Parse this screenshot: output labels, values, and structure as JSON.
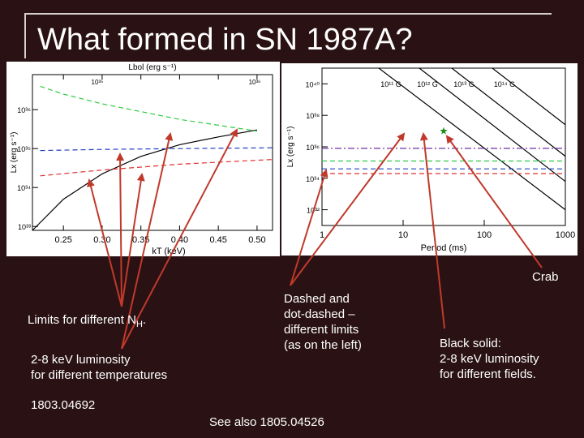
{
  "slide": {
    "title": "What formed in SN 1987A?",
    "labels": {
      "crab": "Crab",
      "limits_nh_prefix": "Limits for different N",
      "limits_nh_sub": "H",
      "limits_nh_suffix": ".",
      "luminosity_temps_1": "2-8 keV luminosity",
      "luminosity_temps_2": "for different temperatures",
      "arxiv_ref": "1803.04692",
      "dashed_1": "Dashed and",
      "dashed_2": "dot-dashed –",
      "dashed_3": "different limits",
      "dashed_4": "(as on the left)",
      "black_1": "Black solid:",
      "black_2": "2-8 keV luminosity",
      "black_3": "for different fields.",
      "see_also": "See also 1805.04526"
    },
    "arrow_color": "#c0392b"
  },
  "chart_data": [
    {
      "type": "line",
      "xlabel": "kT (keV)",
      "ylabel": "Lx (erg s⁻¹)",
      "top_label": "Lbol (erg s⁻¹)",
      "xlim": [
        0.21,
        0.52
      ],
      "ylim_log10": [
        32.9,
        36.9
      ],
      "x_ticks": [
        "0.25",
        "0.30",
        "0.35",
        "0.40",
        "0.45",
        "0.50"
      ],
      "y_ticks": [
        "10³³",
        "10³⁴",
        "10³⁵",
        "10³⁶"
      ],
      "top_ticks": [
        "10³⁵",
        "10³⁶"
      ],
      "series": [
        {
          "style": "solid",
          "color": "#000000",
          "x": [
            0.21,
            0.25,
            0.3,
            0.35,
            0.4,
            0.45,
            0.5
          ],
          "log10y": [
            32.9,
            33.7,
            34.35,
            34.8,
            35.1,
            35.3,
            35.48
          ]
        },
        {
          "style": "dashed",
          "color": "#2ecc40",
          "x": [
            0.22,
            0.25,
            0.3,
            0.35,
            0.4,
            0.45,
            0.5
          ],
          "log10y": [
            36.6,
            36.4,
            36.15,
            35.95,
            35.75,
            35.6,
            35.45
          ]
        },
        {
          "style": "dashed",
          "color": "#1f3fbf",
          "x": [
            0.22,
            0.3,
            0.4,
            0.52
          ],
          "log10y": [
            34.95,
            34.98,
            35.0,
            35.02
          ]
        },
        {
          "style": "dashed",
          "color": "#e03030",
          "x": [
            0.22,
            0.3,
            0.4,
            0.52
          ],
          "log10y": [
            34.3,
            34.45,
            34.6,
            34.72
          ]
        }
      ]
    },
    {
      "type": "line",
      "xlabel": "Period (ms)",
      "ylabel": "Lx (erg s⁻¹)",
      "xlim_log10": [
        0,
        3
      ],
      "ylim_log10": [
        31,
        41
      ],
      "x_ticks": [
        "1",
        "10",
        "100",
        "1000"
      ],
      "y_ticks": [
        "10³²",
        "10³⁴",
        "10³⁶",
        "10³⁸",
        "10⁴⁰"
      ],
      "field_labels": [
        "10¹¹ G",
        "10¹² G",
        "10¹³ G",
        "10¹⁴ G"
      ],
      "series": [
        {
          "style": "solid",
          "color": "#000000",
          "log10x": [
            0.7,
            3.0
          ],
          "log10y": [
            41,
            32
          ]
        },
        {
          "style": "solid",
          "color": "#000000",
          "log10x": [
            1.2,
            3.0
          ],
          "log10y": [
            41,
            33.8
          ]
        },
        {
          "style": "solid",
          "color": "#000000",
          "log10x": [
            1.6,
            3.0
          ],
          "log10y": [
            41,
            35.4
          ]
        },
        {
          "style": "solid",
          "color": "#000000",
          "log10x": [
            2.1,
            3.0
          ],
          "log10y": [
            41,
            37.4
          ]
        },
        {
          "style": "dashdot",
          "color": "#7030a0",
          "log10x": [
            0,
            3
          ],
          "log10y": [
            35.9,
            35.9
          ]
        },
        {
          "style": "dashed",
          "color": "#2ecc40",
          "log10x": [
            0,
            3
          ],
          "log10y": [
            35.1,
            35.1
          ]
        },
        {
          "style": "dashed",
          "color": "#2040c0",
          "log10x": [
            0,
            3
          ],
          "log10y": [
            34.6,
            34.6
          ]
        },
        {
          "style": "dashed",
          "color": "#e03030",
          "log10x": [
            0,
            3
          ],
          "log10y": [
            34.3,
            34.3
          ]
        }
      ],
      "marker": {
        "name": "Crab",
        "color": "#1a8a1a",
        "log10x": 1.5,
        "log10y": 37.0
      }
    }
  ]
}
